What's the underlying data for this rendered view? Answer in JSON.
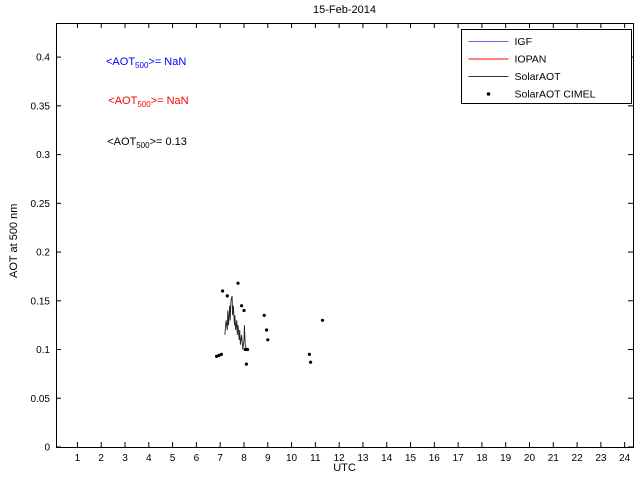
{
  "chart_data": {
    "type": "line",
    "title": "15-Feb-2014",
    "xlabel": "UTC",
    "ylabel": "AOT at 500 nm",
    "xlim": [
      0.1,
      24.35
    ],
    "ylim": [
      0,
      0.435
    ],
    "grid": false,
    "xticks": [
      1,
      2,
      3,
      4,
      5,
      6,
      7,
      8,
      9,
      10,
      11,
      12,
      13,
      14,
      15,
      16,
      17,
      18,
      19,
      20,
      21,
      22,
      23,
      24
    ],
    "yticks": [
      0,
      0.05,
      0.1,
      0.15,
      0.2,
      0.25,
      0.3,
      0.35,
      0.4
    ],
    "ytick_labels": [
      "0",
      "0.05",
      "0.1",
      "0.15",
      "0.2",
      "0.25",
      "0.3",
      "0.35",
      "0.4"
    ],
    "legend": {
      "position": "top-right",
      "entries": [
        {
          "label": "IGF",
          "type": "line",
          "color": "#6666ff"
        },
        {
          "label": "IOPAN",
          "type": "line",
          "color": "#ff0000"
        },
        {
          "label": "SolarAOT",
          "type": "line",
          "color": "#333333"
        },
        {
          "label": "SolarAOT CIMEL",
          "type": "marker",
          "color": "#000000"
        }
      ]
    },
    "annotations": [
      {
        "pre": "<AOT",
        "sub": "500",
        "post": ">=  NaN",
        "color": "#0000ff",
        "x": 2.2,
        "y": 0.392
      },
      {
        "pre": "<AOT",
        "sub": "500",
        "post": ">=  NaN",
        "color": "#ff0000",
        "x": 2.3,
        "y": 0.352
      },
      {
        "pre": "<AOT",
        "sub": "500",
        "post": ">= 0.13",
        "color": "#000000",
        "x": 2.25,
        "y": 0.31
      }
    ],
    "series": [
      {
        "name": "IGF",
        "type": "line",
        "color": "#6666ff",
        "x": [],
        "y": [],
        "mean_aot500": "NaN"
      },
      {
        "name": "IOPAN",
        "type": "line",
        "color": "#ff0000",
        "x": [],
        "y": [],
        "mean_aot500": "NaN"
      },
      {
        "name": "SolarAOT",
        "type": "line",
        "color": "#222222",
        "mean_aot500": "0.13",
        "x": [
          7.2,
          7.25,
          7.3,
          7.32,
          7.35,
          7.4,
          7.42,
          7.45,
          7.5,
          7.52,
          7.55,
          7.6,
          7.62,
          7.65,
          7.7,
          7.72,
          7.75,
          7.8,
          7.82,
          7.85,
          7.9,
          7.95,
          8.0,
          8.02,
          8.05,
          8.1
        ],
        "y": [
          0.115,
          0.13,
          0.12,
          0.14,
          0.125,
          0.145,
          0.13,
          0.15,
          0.155,
          0.135,
          0.145,
          0.125,
          0.135,
          0.12,
          0.13,
          0.115,
          0.125,
          0.11,
          0.12,
          0.105,
          0.115,
          0.1,
          0.11,
          0.125,
          0.105,
          0.1
        ]
      },
      {
        "name": "SolarAOT CIMEL",
        "type": "scatter",
        "color": "#000000",
        "x": [
          6.85,
          6.95,
          7.05,
          7.1,
          7.3,
          7.75,
          7.9,
          8.0,
          8.05,
          8.1,
          8.15,
          8.85,
          8.95,
          9.0,
          10.75,
          10.8,
          11.3
        ],
        "y": [
          0.093,
          0.094,
          0.095,
          0.16,
          0.155,
          0.168,
          0.145,
          0.14,
          0.1,
          0.085,
          0.1,
          0.135,
          0.12,
          0.11,
          0.095,
          0.087,
          0.13
        ]
      }
    ]
  }
}
